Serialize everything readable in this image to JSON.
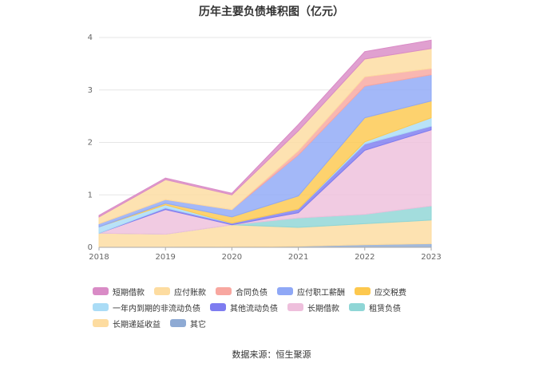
{
  "chart_data": {
    "type": "area",
    "stacked": true,
    "title": "历年主要负债堆积图（亿元）",
    "x": [
      "2018",
      "2019",
      "2020",
      "2021",
      "2022",
      "2023"
    ],
    "ylim": [
      0,
      4
    ],
    "yticks": [
      "0",
      "1",
      "2",
      "3",
      "4"
    ],
    "grid": true,
    "legend_position": "bottom",
    "series": [
      {
        "name": "其它",
        "color": "#8eaad4",
        "values": [
          0.0,
          0.0,
          0.01,
          0.02,
          0.05,
          0.07
        ]
      },
      {
        "name": "长期递延收益",
        "color": "#fddca0",
        "values": [
          0.27,
          0.25,
          0.42,
          0.36,
          0.4,
          0.45
        ]
      },
      {
        "name": "租赁负债",
        "color": "#8fd6d6",
        "values": [
          0.0,
          0.0,
          0.0,
          0.18,
          0.18,
          0.27
        ]
      },
      {
        "name": "长期借款",
        "color": "#eebfdc",
        "values": [
          0.0,
          0.47,
          0.0,
          0.1,
          1.22,
          1.45
        ]
      },
      {
        "name": "其他流动负债",
        "color": "#7e7cf0",
        "values": [
          0.0,
          0.03,
          0.03,
          0.07,
          0.12,
          0.07
        ]
      },
      {
        "name": "一年内到期的非流动负债",
        "color": "#aadcf6",
        "values": [
          0.12,
          0.06,
          0.0,
          0.0,
          0.04,
          0.16
        ]
      },
      {
        "name": "应交税费",
        "color": "#fdc84e",
        "values": [
          0.0,
          0.03,
          0.12,
          0.25,
          0.46,
          0.32
        ]
      },
      {
        "name": "应付职工薪酬",
        "color": "#8fa8f6",
        "values": [
          0.06,
          0.07,
          0.14,
          0.78,
          0.6,
          0.5
        ]
      },
      {
        "name": "合同负债",
        "color": "#f8a7a0",
        "values": [
          0.0,
          0.0,
          0.0,
          0.08,
          0.18,
          0.12
        ]
      },
      {
        "name": "应付账款",
        "color": "#fddca0",
        "values": [
          0.13,
          0.38,
          0.28,
          0.38,
          0.34,
          0.38
        ]
      },
      {
        "name": "短期借款",
        "color": "#d98bc6",
        "values": [
          0.03,
          0.03,
          0.03,
          0.12,
          0.14,
          0.16
        ]
      }
    ],
    "legend_order": [
      "短期借款",
      "应付账款",
      "合同负债",
      "应付职工薪酬",
      "应交税费",
      "一年内到期的非流动负债",
      "其他流动负债",
      "长期借款",
      "租赁负债",
      "长期递延收益",
      "其它"
    ]
  },
  "source_text": "数据来源：恒生聚源"
}
